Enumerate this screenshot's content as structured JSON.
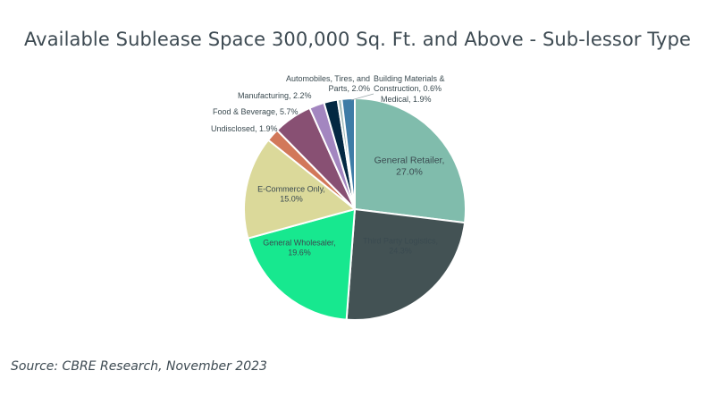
{
  "title": "Available Sublease Space 300,000 Sq. Ft. and Above - Sub-lessor Type",
  "source": "Source: CBRE Research, November 2023",
  "chart_data": {
    "type": "pie",
    "title": "Available Sublease Space 300,000 Sq. Ft. and Above - Sub-lessor Type",
    "start_angle_deg": 0,
    "direction": "clockwise",
    "slices": [
      {
        "name": "General Retailer",
        "value": 27.0,
        "label_lines": [
          "General Retailer,",
          "27.0%"
        ],
        "color": "#80bcac"
      },
      {
        "name": "Third Party Logistics",
        "value": 24.3,
        "label_lines": [
          "Third Party Logistics,",
          "24.3%"
        ],
        "color": "#435254"
      },
      {
        "name": "General Wholesaler",
        "value": 19.6,
        "label_lines": [
          "General Wholesaler,",
          "19.6%"
        ],
        "color": "#17e88f"
      },
      {
        "name": "E-Commerce Only",
        "value": 15.0,
        "label_lines": [
          "E-Commerce Only,",
          "15.0%"
        ],
        "color": "#dbd99a"
      },
      {
        "name": "Undisclosed",
        "value": 1.9,
        "label_lines": [
          "Undisclosed, 1.9%"
        ],
        "color": "#d2785a"
      },
      {
        "name": "Food & Beverage",
        "value": 5.7,
        "label_lines": [
          "Food & Beverage, 5.7%"
        ],
        "color": "#885073"
      },
      {
        "name": "Manufacturing",
        "value": 2.2,
        "label_lines": [
          "Manufacturing, 2.2%"
        ],
        "color": "#a386c0"
      },
      {
        "name": "Automobiles, Tires, and Parts",
        "value": 2.0,
        "label_lines": [
          "Automobiles, Tires, and",
          "Parts, 2.0%"
        ],
        "color": "#032842"
      },
      {
        "name": "Building Materials & Construction",
        "value": 0.6,
        "label_lines": [
          "Building Materials &",
          "Construction, 0.6%"
        ],
        "color": "#a4bdbc"
      },
      {
        "name": "Medical",
        "value": 1.9,
        "label_lines": [
          "Medical, 1.9%"
        ],
        "color": "#3e7ca6"
      }
    ]
  }
}
